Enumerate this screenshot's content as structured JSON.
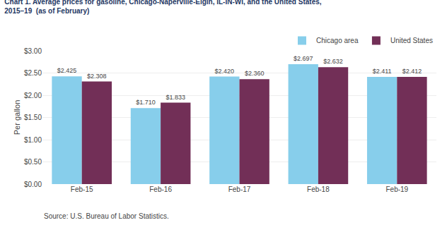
{
  "chart_data": {
    "type": "bar",
    "title": "Chart 1. Average prices for gasoline, Chicago-Naperville-Elgin, IL-IN-WI, and the United States,",
    "subtitle": "2015–19  (as of February)",
    "ylabel": "Per gallon",
    "annotations": [
      "Source: U.S. Bureau of Labor Statistics."
    ],
    "categories": [
      "Feb-15",
      "Feb-16",
      "Feb-17",
      "Feb-18",
      "Feb-19"
    ],
    "series": [
      {
        "name": "Chicago area",
        "color": "#87CEEB",
        "values": [
          2.425,
          1.71,
          2.42,
          2.697,
          2.411
        ],
        "value_labels": [
          "$2.425",
          "$1.710",
          "$2.420",
          "$2.697",
          "$2.411"
        ]
      },
      {
        "name": "United States",
        "color": "#722F57",
        "values": [
          2.308,
          1.833,
          2.36,
          2.632,
          2.412
        ],
        "value_labels": [
          "$2.308",
          "$1.833",
          "$2.360",
          "$2.632",
          "$2.412"
        ]
      }
    ],
    "ylim": [
      0,
      3.0
    ],
    "yticks": [
      {
        "value": 0.0,
        "label": "$0.00"
      },
      {
        "value": 0.5,
        "label": "$0.50"
      },
      {
        "value": 1.0,
        "label": "$1.00"
      },
      {
        "value": 1.5,
        "label": "$1.50"
      },
      {
        "value": 2.0,
        "label": "$2.00"
      },
      {
        "value": 2.5,
        "label": "$2.50"
      },
      {
        "value": 3.0,
        "label": "$3.00"
      }
    ],
    "grid": true,
    "legend": "upper right",
    "data_labels": true
  }
}
